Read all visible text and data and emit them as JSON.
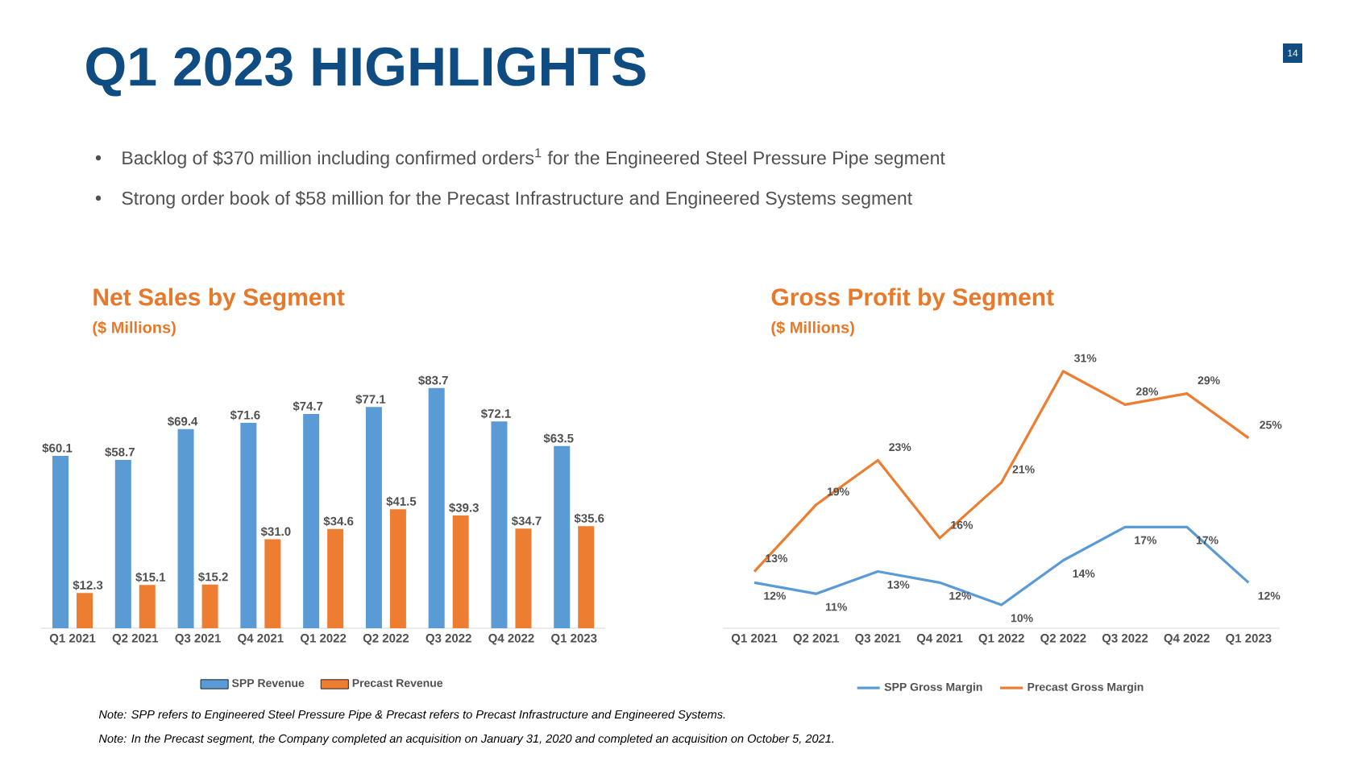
{
  "chart_data": [
    {
      "type": "bar",
      "title": "Net Sales by Segment",
      "subtitle": "($ Millions)",
      "categories": [
        "Q1 2021",
        "Q2 2021",
        "Q3 2021",
        "Q4 2021",
        "Q1 2022",
        "Q2 2022",
        "Q3 2022",
        "Q4 2022",
        "Q1 2023"
      ],
      "series": [
        {
          "name": "SPP Revenue",
          "color": "#5b9bd5",
          "values": [
            60.1,
            58.7,
            69.4,
            71.6,
            74.7,
            77.1,
            83.7,
            72.1,
            63.5
          ],
          "value_labels": [
            "$60.1",
            "$58.7",
            "$69.4",
            "$71.6",
            "$74.7",
            "$77.1",
            "$83.7",
            "$72.1",
            "$63.5"
          ]
        },
        {
          "name": "Precast Revenue",
          "color": "#ed7d31",
          "values": [
            12.3,
            15.1,
            15.2,
            31.0,
            34.6,
            41.5,
            39.3,
            34.7,
            35.6
          ],
          "value_labels": [
            "$12.3",
            "$15.1",
            "$15.2",
            "$31.0",
            "$34.6",
            "$41.5",
            "$39.3",
            "$34.7",
            "$35.6"
          ]
        }
      ],
      "tick_labels": "x",
      "legend": "bottom",
      "annotations": [
        "Q1 2023 HIGHLIGHTS",
        "Backlog of $370 million including confirmed orders$^{1}$ for the Engineered Steel Pressure Pipe segment",
        "Strong order book of $58 million for the Precast Infrastructure and Engineered Systems segment",
        "Note: SPP refers to Engineered Steel Pressure Pipe & Precast refers to Precast Infrastructure and Engineered Systems.",
        "Note: In the Precast segment, the Company completed an acquisition on January 31, 2020 and completed an acquisition on October 5, 2021.",
        "14"
      ]
    },
    {
      "type": "line",
      "title": "Gross Profit by Segment",
      "subtitle": "($ Millions)",
      "categories": [
        "Q1 2021",
        "Q2 2021",
        "Q3 2021",
        "Q4 2021",
        "Q1 2022",
        "Q2 2022",
        "Q3 2022",
        "Q4 2022",
        "Q1 2023"
      ],
      "series": [
        {
          "name": "SPP Gross Margin",
          "color": "#5b9bd5",
          "values": [
            12,
            11,
            13,
            12,
            10,
            14,
            17,
            17,
            12
          ],
          "value_labels": [
            "12%",
            "11%",
            "13%",
            "12%",
            "10%",
            "14%",
            "17%",
            "17%",
            "12%"
          ]
        },
        {
          "name": "Precast Gross Margin",
          "color": "#ed7d31",
          "values": [
            13,
            19,
            23,
            16,
            21,
            31,
            28,
            29,
            25
          ],
          "value_labels": [
            "13%",
            "19%",
            "23%",
            "16%",
            "21%",
            "31%",
            "28%",
            "29%",
            "25%"
          ]
        }
      ],
      "tick_labels": "x",
      "legend": "bottom",
      "marker": "none"
    }
  ]
}
